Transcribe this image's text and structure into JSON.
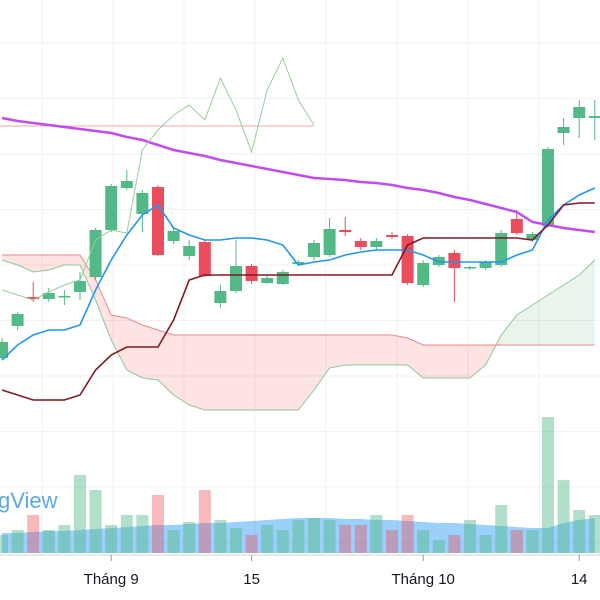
{
  "chart_data": {
    "type": "candlestick",
    "watermark": "gView",
    "grid": true,
    "categories": [
      null,
      null,
      null,
      null,
      null,
      null,
      null,
      "Tháng 9",
      null,
      null,
      null,
      null,
      null,
      null,
      null,
      null,
      "15",
      null,
      null,
      null,
      null,
      null,
      null,
      null,
      null,
      null,
      null,
      "Tháng 10",
      null,
      null,
      null,
      null,
      null,
      null,
      null,
      null,
      null,
      "14",
      null
    ],
    "open": [
      242,
      274,
      303,
      301,
      303,
      308,
      323,
      370,
      412,
      386,
      413,
      359,
      344,
      358,
      297,
      309,
      334,
      317,
      316,
      336,
      343,
      345,
      370,
      359,
      353,
      365,
      364,
      315,
      335,
      347,
      332,
      332,
      335,
      381,
      360,
      374,
      467,
      482,
      482
    ],
    "high": [
      262,
      288,
      318,
      312,
      310,
      328,
      372,
      416,
      430,
      410,
      415,
      372,
      360,
      360,
      315,
      360,
      336,
      324,
      330,
      340,
      360,
      382,
      383,
      362,
      362,
      368,
      366,
      340,
      345,
      350,
      334,
      340,
      370,
      390,
      368,
      453,
      482,
      500,
      500
    ],
    "low": [
      240,
      270,
      298,
      298,
      295,
      300,
      320,
      368,
      410,
      368,
      344,
      356,
      340,
      323,
      292,
      307,
      316,
      316,
      315,
      334,
      340,
      343,
      364,
      350,
      350,
      361,
      315,
      313,
      333,
      298,
      330,
      330,
      333,
      365,
      358,
      372,
      455,
      462,
      460
    ],
    "close": [
      258,
      286,
      301,
      307,
      304,
      319,
      370,
      414,
      419,
      407,
      345,
      369,
      354,
      324,
      309,
      334,
      319,
      322,
      328,
      338,
      357,
      371,
      368,
      353,
      359,
      363,
      317,
      337,
      343,
      332,
      333,
      338,
      367,
      367,
      366,
      451,
      473,
      493,
      484
    ],
    "up_color": "#53b987",
    "down_color": "#eb4d5c",
    "ylim": [
      0,
      600
    ],
    "lines": [
      {
        "color": "#c04cf0",
        "width": 2.5,
        "values": [
          482,
          479,
          477,
          475,
          473,
          471,
          469,
          467,
          463,
          460,
          455,
          450,
          447,
          444,
          440,
          437,
          434,
          431,
          428,
          425,
          422,
          421,
          420,
          418,
          417,
          415,
          412,
          410,
          407,
          403,
          400,
          396,
          392,
          388,
          378,
          375,
          372,
          370,
          368
        ]
      },
      {
        "color": "#2196f3",
        "width": 1.6,
        "values": [
          240,
          255,
          265,
          270,
          270,
          275,
          310,
          340,
          365,
          385,
          395,
          372,
          365,
          360,
          360,
          362,
          362,
          360,
          355,
          335,
          338,
          340,
          345,
          348,
          350,
          350,
          350,
          345,
          338,
          338,
          338,
          338,
          338,
          345,
          350,
          380,
          395,
          405,
          412
        ]
      },
      {
        "color": "#801922",
        "width": 1.6,
        "values": [
          210,
          205,
          200,
          200,
          200,
          205,
          230,
          245,
          253,
          253,
          253,
          280,
          320,
          325,
          325,
          325,
          325,
          325,
          325,
          325,
          325,
          325,
          325,
          325,
          325,
          325,
          355,
          362,
          362,
          362,
          362,
          362,
          362,
          362,
          360,
          375,
          395,
          397,
          397
        ]
      },
      {
        "color": "#9ccc9c",
        "width": 1,
        "values": [
          310,
          305,
          300,
          308,
          315,
          320,
          360,
          370,
          367,
          450,
          470,
          485,
          495,
          480,
          522,
          490,
          448,
          510,
          542,
          500,
          475,
          null,
          null,
          null,
          null,
          null,
          null,
          null,
          null,
          null,
          null,
          null,
          null,
          null,
          null,
          null,
          null,
          null,
          null
        ]
      }
    ],
    "cloud": {
      "span_a": {
        "color": "#8fc79a",
        "values": [
          340,
          335,
          328,
          330,
          335,
          335,
          300,
          260,
          230,
          222,
          220,
          205,
          195,
          190,
          190,
          190,
          190,
          190,
          190,
          190,
          210,
          232,
          235,
          235,
          235,
          235,
          235,
          222,
          222,
          222,
          222,
          235,
          265,
          285,
          295,
          305,
          315,
          325,
          340
        ]
      },
      "span_b": {
        "color": "#ef8a8a",
        "values": [
          345,
          345,
          345,
          345,
          345,
          345,
          320,
          285,
          282,
          275,
          270,
          265,
          265,
          265,
          265,
          265,
          265,
          265,
          265,
          265,
          265,
          265,
          265,
          265,
          265,
          265,
          262,
          255,
          255,
          255,
          255,
          255,
          255,
          255,
          255,
          255,
          255,
          255,
          255
        ]
      },
      "up_fill": "rgba(76,175,80,0.12)",
      "down_fill": "rgba(244,67,54,0.15)"
    },
    "price_line": {
      "value": 474,
      "color": "#f4a4a4"
    },
    "volume": {
      "ylim": [
        0,
        553
      ],
      "up_color": "rgba(83,185,135,0.45)",
      "down_color": "rgba(235,77,92,0.4)",
      "values": [
        18,
        23,
        38,
        23,
        28,
        78,
        63,
        28,
        38,
        38,
        58,
        23,
        31,
        63,
        33,
        25,
        18,
        28,
        23,
        33,
        35,
        33,
        28,
        28,
        38,
        23,
        38,
        23,
        13,
        18,
        33,
        18,
        48,
        23,
        23,
        136,
        73,
        43,
        38
      ],
      "ma": {
        "color": "rgba(33,150,243,0.45)",
        "values": [
          20,
          20,
          21,
          22,
          22,
          23,
          24,
          25,
          26,
          27,
          28,
          28,
          29,
          30,
          30,
          31,
          32,
          33,
          34,
          35,
          35,
          35,
          34,
          34,
          33,
          33,
          32,
          31,
          30,
          30,
          29,
          28,
          27,
          26,
          25,
          25,
          30,
          33,
          35
        ]
      }
    }
  }
}
